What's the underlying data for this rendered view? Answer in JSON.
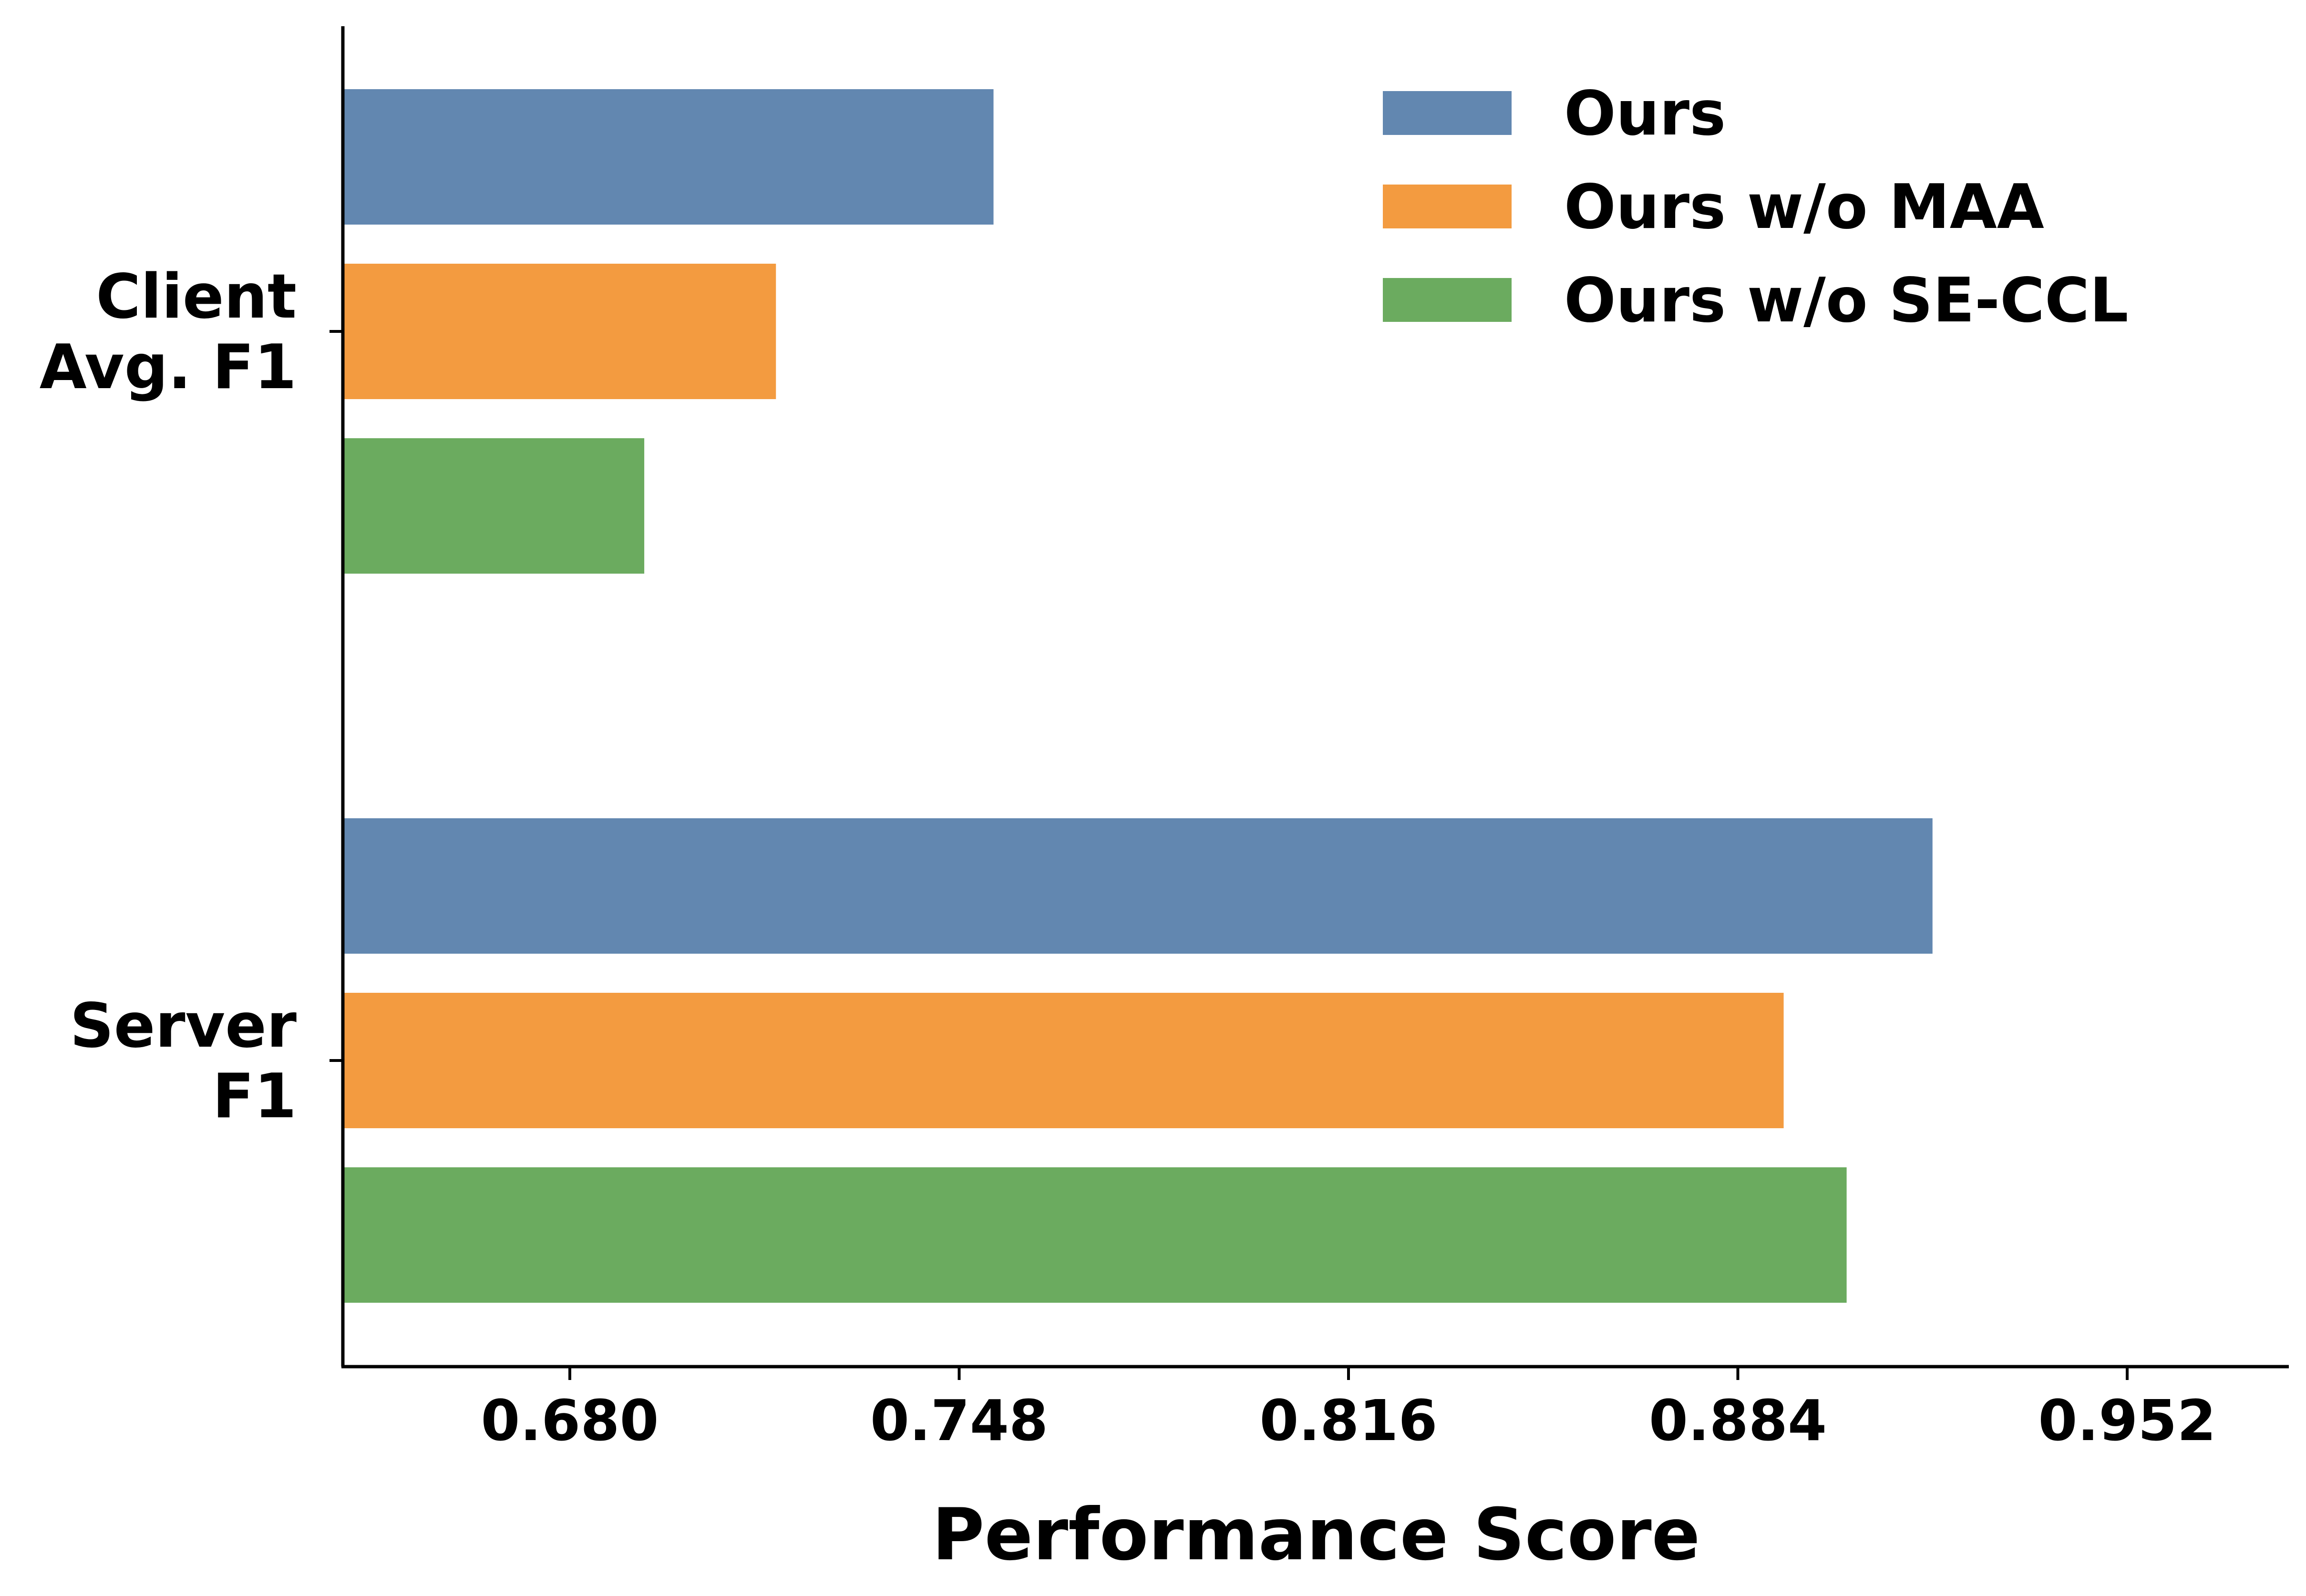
{
  "chart_data": {
    "type": "bar",
    "orientation": "horizontal",
    "title": "",
    "xlabel": "Performance Score",
    "ylabel": "",
    "xlim": [
      0.64,
      0.98
    ],
    "xticks": [
      0.68,
      0.748,
      0.816,
      0.884,
      0.952
    ],
    "xtick_labels": [
      "0.680",
      "0.748",
      "0.816",
      "0.884",
      "0.952"
    ],
    "categories": [
      {
        "lines": [
          "Client",
          "Avg. F1"
        ]
      },
      {
        "lines": [
          "Server",
          "F1"
        ]
      }
    ],
    "series": [
      {
        "name": "Ours",
        "color": "#6287b0",
        "values": [
          0.754,
          0.918
        ]
      },
      {
        "name": "Ours w/o MAA",
        "color": "#f39b40",
        "values": [
          0.716,
          0.892
        ]
      },
      {
        "name": "Ours w/o SE-CCL",
        "color": "#6bab5f",
        "values": [
          0.693,
          0.903
        ]
      }
    ],
    "grid": false,
    "legend_position": "top-right"
  }
}
